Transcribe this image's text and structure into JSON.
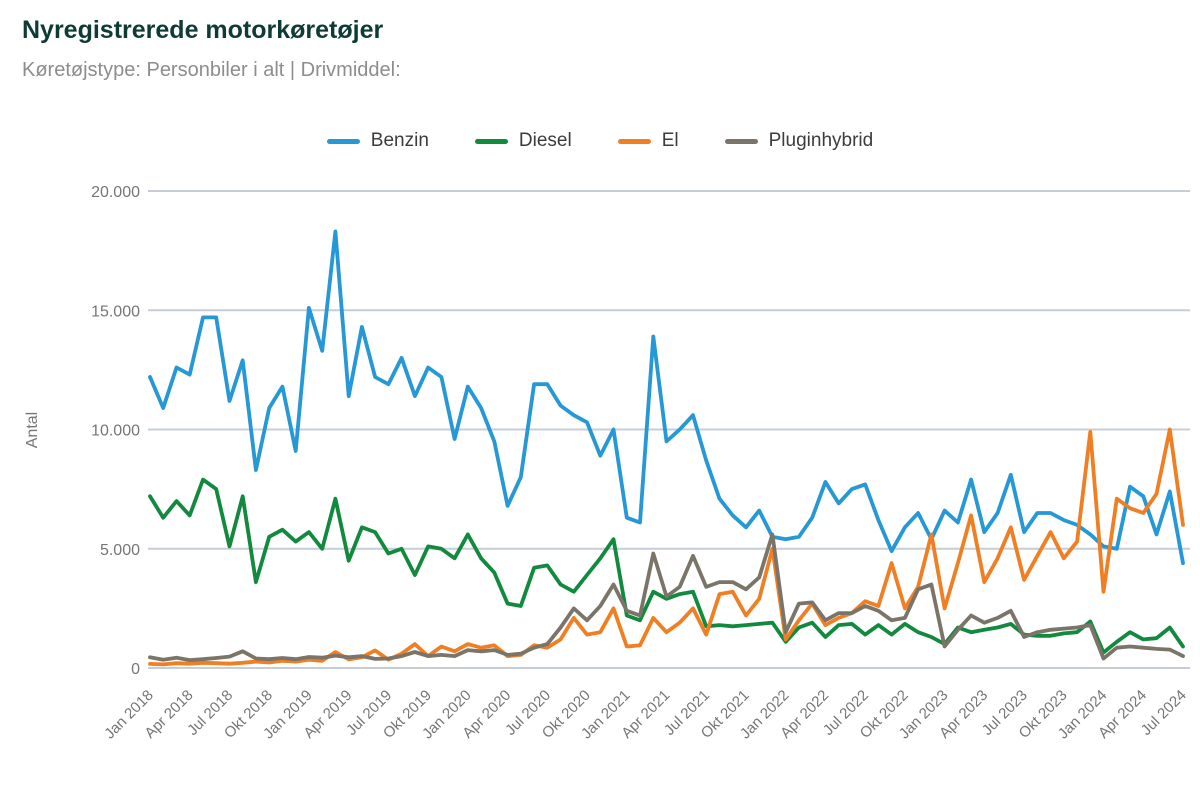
{
  "header": {
    "title": "Nyregistrerede motorkøretøjer",
    "subtitle": "Køretøjstype: Personbiler i alt | Drivmiddel:"
  },
  "colors": {
    "title": "#0f3b36",
    "subtitle": "#8d8d8d",
    "axis_text": "#767676",
    "gridline": "#c7cdd6"
  },
  "chart_data": {
    "type": "line",
    "title": "Nyregistrerede motorkøretøjer",
    "xlabel": "",
    "ylabel": "Antal",
    "ylim": [
      0,
      20000
    ],
    "y_ticks": [
      0,
      5000,
      10000,
      15000,
      20000
    ],
    "y_tick_labels": [
      "0",
      "5.000",
      "10.000",
      "15.000",
      "20.000"
    ],
    "grid": "horizontal",
    "legend_position": "top",
    "x_tick_every": 3,
    "categories": [
      "Jan 2018",
      "Feb 2018",
      "Mar 2018",
      "Apr 2018",
      "Maj 2018",
      "Jun 2018",
      "Jul 2018",
      "Aug 2018",
      "Sep 2018",
      "Okt 2018",
      "Nov 2018",
      "Dec 2018",
      "Jan 2019",
      "Feb 2019",
      "Mar 2019",
      "Apr 2019",
      "Maj 2019",
      "Jun 2019",
      "Jul 2019",
      "Aug 2019",
      "Sep 2019",
      "Okt 2019",
      "Nov 2019",
      "Dec 2019",
      "Jan 2020",
      "Feb 2020",
      "Mar 2020",
      "Apr 2020",
      "Maj 2020",
      "Jun 2020",
      "Jul 2020",
      "Aug 2020",
      "Sep 2020",
      "Okt 2020",
      "Nov 2020",
      "Dec 2020",
      "Jan 2021",
      "Feb 2021",
      "Mar 2021",
      "Apr 2021",
      "Maj 2021",
      "Jun 2021",
      "Jul 2021",
      "Aug 2021",
      "Sep 2021",
      "Okt 2021",
      "Nov 2021",
      "Dec 2021",
      "Jan 2022",
      "Feb 2022",
      "Mar 2022",
      "Apr 2022",
      "Maj 2022",
      "Jun 2022",
      "Jul 2022",
      "Aug 2022",
      "Sep 2022",
      "Okt 2022",
      "Nov 2022",
      "Dec 2022",
      "Jan 2023",
      "Feb 2023",
      "Mar 2023",
      "Apr 2023",
      "Maj 2023",
      "Jun 2023",
      "Jul 2023",
      "Aug 2023",
      "Sep 2023",
      "Okt 2023",
      "Nov 2023",
      "Dec 2023",
      "Jan 2024",
      "Feb 2024",
      "Mar 2024",
      "Apr 2024",
      "Maj 2024",
      "Jun 2024",
      "Jul 2024"
    ],
    "series": [
      {
        "name": "Benzin",
        "color": "#2598d5",
        "values": [
          12200,
          10900,
          12600,
          12300,
          14700,
          14700,
          11200,
          12900,
          8300,
          10900,
          11800,
          9100,
          15100,
          13300,
          18300,
          11400,
          14300,
          12200,
          11900,
          13000,
          11400,
          12600,
          12200,
          9600,
          11800,
          10900,
          9500,
          6800,
          8000,
          11900,
          11900,
          11000,
          10600,
          10300,
          8900,
          10000,
          6300,
          6100,
          13900,
          9500,
          10000,
          10600,
          8700,
          7100,
          6400,
          5900,
          6600,
          5500,
          5400,
          5500,
          6300,
          7800,
          6900,
          7500,
          7700,
          6200,
          4900,
          5900,
          6500,
          5400,
          6600,
          6100,
          7900,
          5700,
          6500,
          8100,
          5700,
          6500,
          6500,
          6200,
          6000,
          5600,
          5100,
          5000,
          7600,
          7200,
          5600,
          7400,
          4400
        ]
      },
      {
        "name": "Diesel",
        "color": "#128a3e",
        "values": [
          7200,
          6300,
          7000,
          6400,
          7900,
          7500,
          5100,
          7200,
          3600,
          5500,
          5800,
          5300,
          5700,
          5000,
          7100,
          4500,
          5900,
          5700,
          4800,
          5000,
          3900,
          5100,
          5000,
          4600,
          5600,
          4600,
          4000,
          2700,
          2600,
          4200,
          4300,
          3500,
          3200,
          3900,
          4600,
          5400,
          2200,
          2000,
          3200,
          2900,
          3100,
          3200,
          1750,
          1800,
          1750,
          1800,
          1850,
          1900,
          1100,
          1700,
          1900,
          1300,
          1800,
          1850,
          1400,
          1800,
          1400,
          1850,
          1500,
          1300,
          1000,
          1700,
          1500,
          1600,
          1700,
          1850,
          1400,
          1350,
          1350,
          1450,
          1500,
          1950,
          650,
          1100,
          1500,
          1200,
          1250,
          1700,
          900
        ]
      },
      {
        "name": "El",
        "color": "#f07f23",
        "values": [
          170,
          150,
          200,
          180,
          220,
          200,
          180,
          220,
          270,
          230,
          300,
          270,
          350,
          300,
          670,
          360,
          450,
          740,
          350,
          600,
          1000,
          500,
          900,
          700,
          1000,
          850,
          950,
          500,
          550,
          950,
          850,
          1200,
          2100,
          1400,
          1500,
          2500,
          900,
          950,
          2100,
          1500,
          1900,
          2500,
          1400,
          3100,
          3200,
          2200,
          2900,
          5000,
          1200,
          2000,
          2700,
          1800,
          2100,
          2300,
          2800,
          2600,
          4400,
          2500,
          3400,
          5600,
          2500,
          4400,
          6400,
          3600,
          4600,
          5900,
          3700,
          4700,
          5700,
          4600,
          5300,
          9900,
          3200,
          7100,
          6700,
          6500,
          7300,
          10000,
          6000
        ]
      },
      {
        "name": "Pluginhybrid",
        "color": "#7b7468",
        "values": [
          450,
          350,
          430,
          330,
          370,
          420,
          480,
          700,
          400,
          370,
          420,
          370,
          460,
          430,
          520,
          450,
          500,
          380,
          400,
          500,
          670,
          500,
          550,
          500,
          750,
          700,
          750,
          550,
          600,
          850,
          1000,
          1700,
          2500,
          2000,
          2600,
          3500,
          2400,
          2200,
          4800,
          3000,
          3400,
          4700,
          3400,
          3600,
          3600,
          3300,
          3800,
          5600,
          1500,
          2700,
          2750,
          2000,
          2300,
          2300,
          2600,
          2400,
          2000,
          2100,
          3300,
          3500,
          900,
          1600,
          2200,
          1900,
          2100,
          2400,
          1300,
          1500,
          1600,
          1650,
          1700,
          1800,
          400,
          850,
          900,
          850,
          800,
          770,
          500
        ]
      }
    ]
  }
}
